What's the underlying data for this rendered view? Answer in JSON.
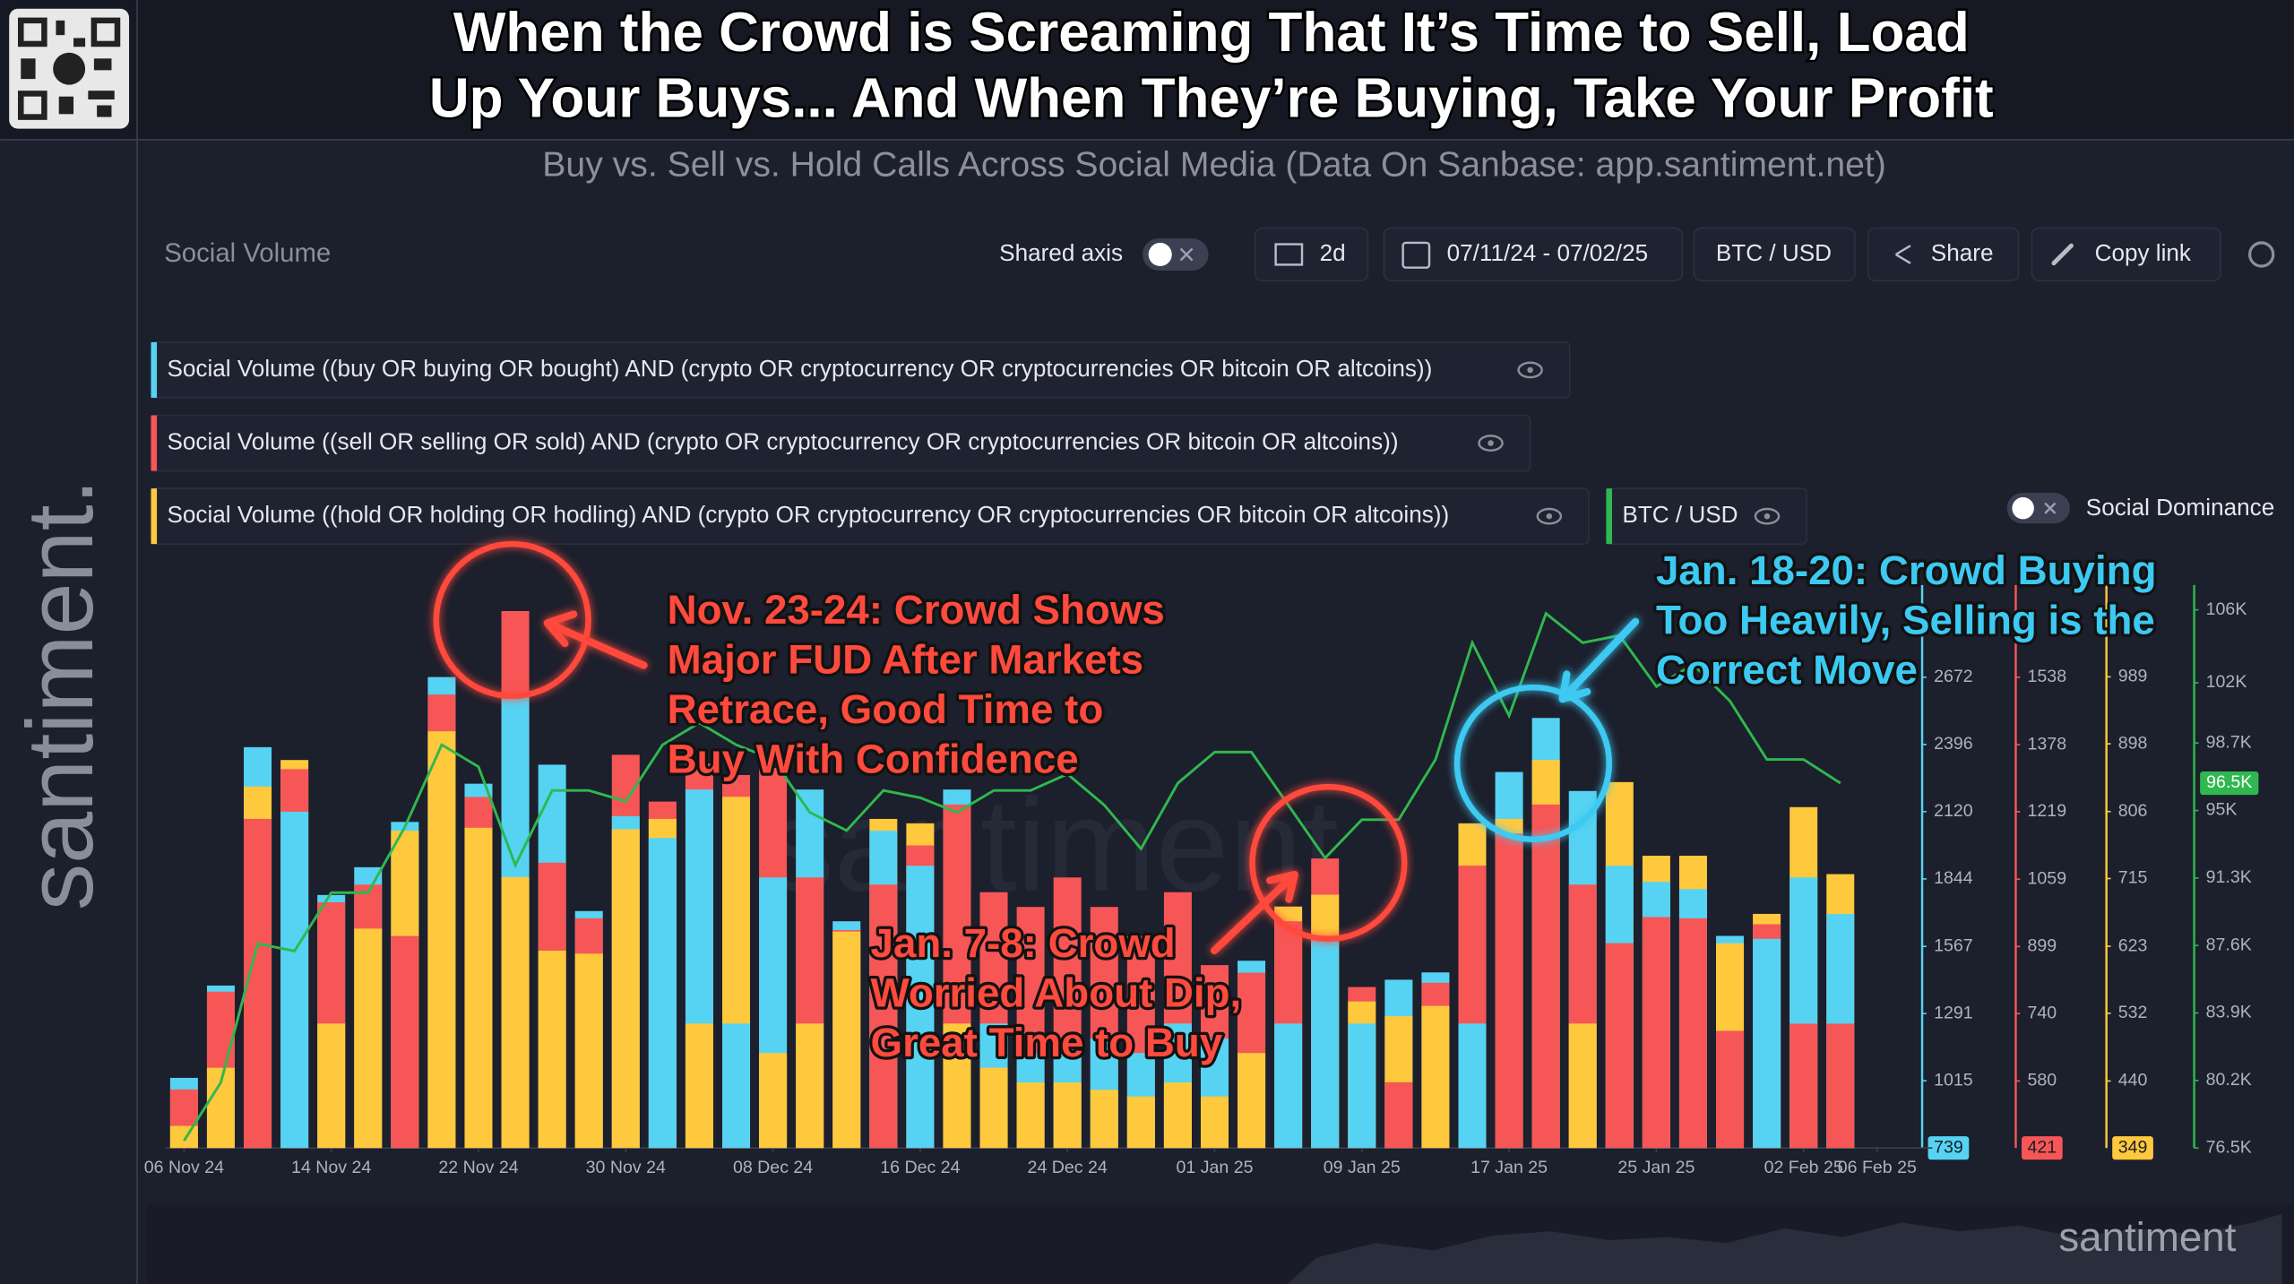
{
  "header": {
    "title_lines": [
      "When the Crowd is Screaming That It’s Time to Sell, Load",
      "Up Your Buys... And When They’re Buying, Take Your Profit"
    ],
    "subtitle": "Buy vs. Sell vs. Hold Calls Across Social Media (Data On Sanbase: app.santiment.net)"
  },
  "sidebar_brand": "santiment.",
  "toolbar": {
    "title": "Social Volume",
    "shared_axis": "Shared axis",
    "interval": "2d",
    "date_range": "07/11/24 - 07/02/25",
    "pair": "BTC / USD",
    "share": "Share",
    "copy_link": "Copy link",
    "social_dominance": "Social Dominance"
  },
  "chart_data": {
    "type": "bar",
    "watermark": "santiment",
    "x": [
      "2024-11-06",
      "2024-11-08",
      "2024-11-10",
      "2024-11-12",
      "2024-11-14",
      "2024-11-16",
      "2024-11-18",
      "2024-11-20",
      "2024-11-22",
      "2024-11-24",
      "2024-11-26",
      "2024-11-28",
      "2024-11-30",
      "2024-12-02",
      "2024-12-04",
      "2024-12-06",
      "2024-12-08",
      "2024-12-10",
      "2024-12-12",
      "2024-12-14",
      "2024-12-16",
      "2024-12-18",
      "2024-12-20",
      "2024-12-22",
      "2024-12-24",
      "2024-12-26",
      "2024-12-28",
      "2024-12-30",
      "2025-01-01",
      "2025-01-03",
      "2025-01-05",
      "2025-01-07",
      "2025-01-09",
      "2025-01-11",
      "2025-01-13",
      "2025-01-15",
      "2025-01-17",
      "2025-01-19",
      "2025-01-21",
      "2025-01-23",
      "2025-01-25",
      "2025-01-27",
      "2025-01-29",
      "2025-01-31",
      "2025-02-02",
      "2025-02-04"
    ],
    "xlim": [
      "2024-11-05",
      "2025-02-09"
    ],
    "xticks": [
      {
        "value": "2024-11-06",
        "label": "06 Nov 24"
      },
      {
        "value": "2024-11-14",
        "label": "14 Nov 24"
      },
      {
        "value": "2024-11-22",
        "label": "22 Nov 24"
      },
      {
        "value": "2024-11-30",
        "label": "30 Nov 24"
      },
      {
        "value": "2024-12-08",
        "label": "08 Dec 24"
      },
      {
        "value": "2024-12-16",
        "label": "16 Dec 24"
      },
      {
        "value": "2024-12-24",
        "label": "24 Dec 24"
      },
      {
        "value": "2025-01-01",
        "label": "01 Jan 25"
      },
      {
        "value": "2025-01-09",
        "label": "09 Jan 25"
      },
      {
        "value": "2025-01-17",
        "label": "17 Jan 25"
      },
      {
        "value": "2025-01-25",
        "label": "25 Jan 25"
      },
      {
        "value": "2025-02-02",
        "label": "02 Feb 25"
      },
      {
        "value": "2025-02-06",
        "label": "06 Feb 25"
      }
    ],
    "series": [
      {
        "name": "Social Volume ((buy OR buying OR bought) AND (crypto OR cryptocurrency OR cryptocurrencies OR bitcoin OR altcoins))",
        "type": "bar",
        "color": "#56d3f2",
        "ylim": [
          739,
          2949
        ],
        "yticks": [
          1015,
          1291,
          1567,
          1844,
          2120,
          2396,
          2672
        ],
        "values": [
          1027,
          1406,
          2385,
          2120,
          1778,
          1892,
          2078,
          2673,
          2235,
          2601,
          2313,
          1712,
          2102,
          2012,
          2211,
          1250,
          1850,
          2211,
          1670,
          2042,
          1898,
          2211,
          1250,
          1129,
          1129,
          1189,
          1129,
          1250,
          1189,
          1508,
          1250,
          1610,
          1250,
          1430,
          1460,
          1250,
          2283,
          2505,
          2205,
          1898,
          1832,
          1802,
          1610,
          1598,
          1850,
          1700
        ]
      },
      {
        "name": "Social Volume ((sell OR selling OR sold) AND (crypto OR cryptocurrency OR cryptocurrencies OR bitcoin OR altcoins))",
        "type": "bar",
        "color": "#f65656",
        "ylim": [
          421,
          1698
        ],
        "yticks": [
          580,
          740,
          899,
          1059,
          1219,
          1378,
          1538
        ],
        "values": [
          560,
          792,
          1202,
          1320,
          1004,
          1046,
          924,
          1497,
          1254,
          1695,
          1098,
          966,
          1354,
          1243,
          1333,
          1306,
          1323,
          1063,
          938,
          1046,
          1139,
          1236,
          1028,
          993,
          1063,
          993,
          924,
          1028,
          855,
          837,
          959,
          1108,
          803,
          577,
          813,
          1091,
          1167,
          1236,
          1046,
          907,
          969,
          966,
          699,
          952,
          716,
          716
        ]
      },
      {
        "name": "Social Volume ((hold OR holding OR hodling) AND (crypto OR cryptocurrency OR cryptocurrencies OR bitcoin OR altcoins))",
        "type": "bar",
        "color": "#ffc93d",
        "ylim": [
          349,
          1080
        ],
        "yticks": [
          440,
          532,
          623,
          715,
          806,
          898,
          989
        ],
        "values": [
          379,
          458,
          840,
          876,
          518,
          647,
          780,
          915,
          784,
          717,
          617,
          613,
          782,
          796,
          518,
          826,
          478,
          518,
          643,
          796,
          790,
          518,
          458,
          438,
          438,
          428,
          419,
          438,
          419,
          478,
          677,
          693,
          548,
          528,
          542,
          790,
          796,
          876,
          518,
          846,
          746,
          746,
          627,
          667,
          812,
          721
        ]
      },
      {
        "name": "BTC / USD",
        "type": "line",
        "color": "#2fb84f",
        "ylim": [
          76500,
          106000
        ],
        "yticks": [
          {
            "value": 76500,
            "label": "76.5K"
          },
          {
            "value": 80200,
            "label": "80.2K"
          },
          {
            "value": 83900,
            "label": "83.9K"
          },
          {
            "value": 87600,
            "label": "87.6K"
          },
          {
            "value": 91300,
            "label": "91.3K"
          },
          {
            "value": 95000,
            "label": "95K"
          },
          {
            "value": 98700,
            "label": "98.7K"
          },
          {
            "value": 102000,
            "label": "102K"
          },
          {
            "value": 106000,
            "label": "106K"
          }
        ],
        "values": [
          76900,
          80100,
          87700,
          87300,
          90500,
          90500,
          94100,
          98600,
          97400,
          92000,
          96100,
          96100,
          95500,
          98600,
          99800,
          98600,
          97800,
          94900,
          93900,
          96100,
          95700,
          94900,
          96100,
          96100,
          97000,
          95300,
          92900,
          96500,
          98200,
          98200,
          95300,
          92400,
          94500,
          94500,
          97800,
          104200,
          100200,
          105800,
          104200,
          104600,
          101800,
          103000,
          101000,
          97800,
          97800,
          96500
        ]
      }
    ],
    "price_marker": {
      "value": 96500,
      "label": "96.5K"
    },
    "annotations": [
      {
        "color": "#ff4a3d",
        "lines": [
          "Nov. 23-24: Crowd Shows",
          "Major FUD After Markets",
          "Retrace, Good Time to",
          "Buy With Confidence"
        ]
      },
      {
        "color": "#ff4a3d",
        "lines": [
          "Jan. 7-8: Crowd",
          "Worried About Dip,",
          "Great Time to Buy"
        ]
      },
      {
        "color": "#3cc9f2",
        "lines": [
          "Jan. 18-20: Crowd Buying",
          "Too Heavily, Selling is the",
          "Correct Move"
        ]
      }
    ]
  },
  "footer_brand": "santiment"
}
